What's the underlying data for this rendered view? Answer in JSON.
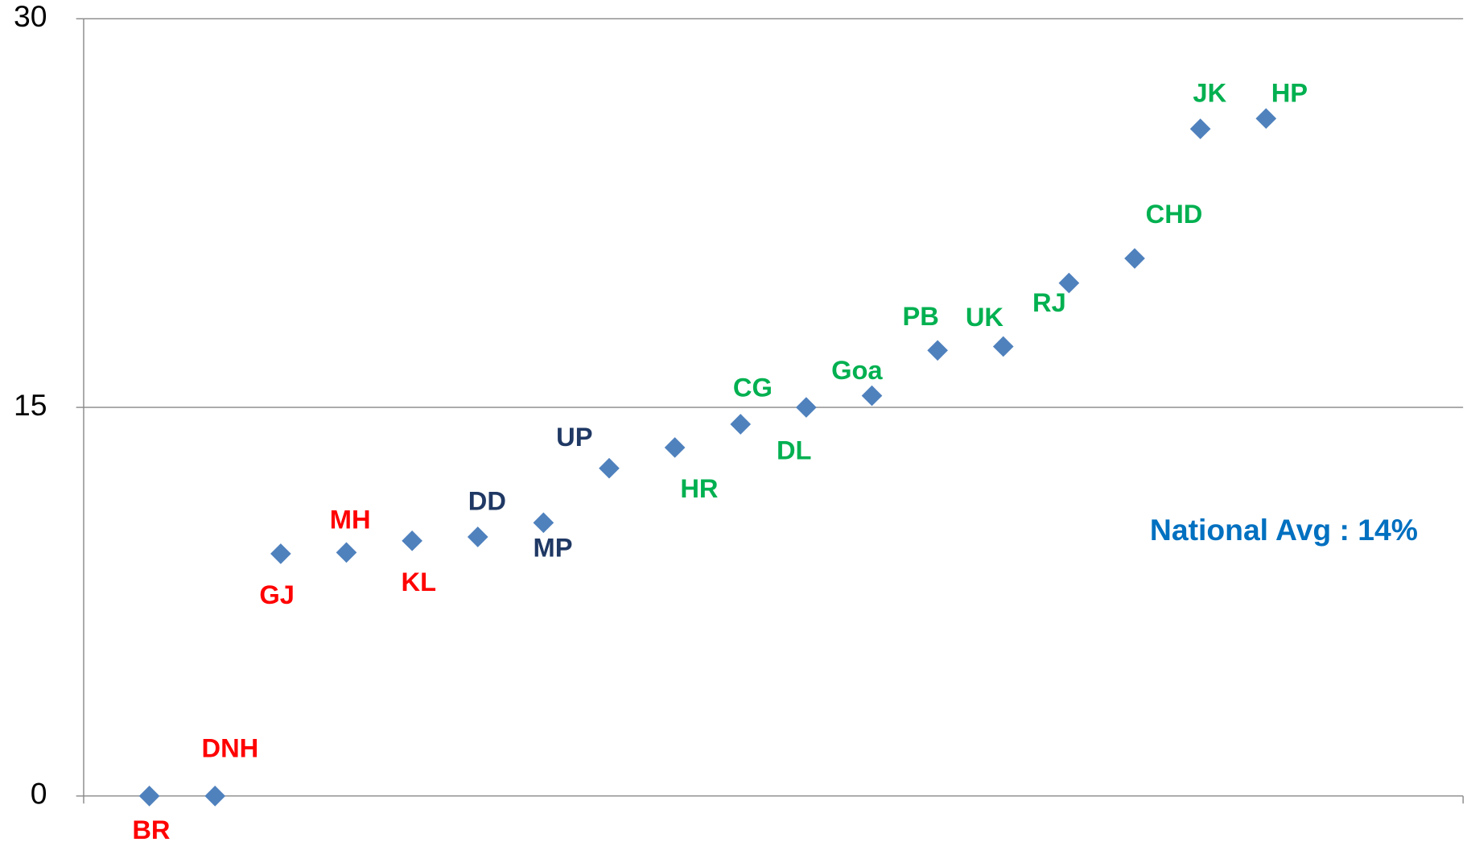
{
  "chart_data": {
    "type": "scatter",
    "categories": [
      "BR",
      "DNH",
      "GJ",
      "MH",
      "KL",
      "DD",
      "MP",
      "UP",
      "HR",
      "CG",
      "DL",
      "Goa",
      "PB",
      "UK",
      "RJ",
      "CHD",
      "JK",
      "HP"
    ],
    "values": [
      0,
      0,
      9.35,
      9.4,
      9.85,
      10,
      10.55,
      12.65,
      13.45,
      14.35,
      15,
      15.45,
      17.2,
      17.35,
      19.8,
      20.75,
      25.75,
      26.15
    ],
    "label_colors": [
      "#ff0000",
      "#ff0000",
      "#ff0000",
      "#ff0000",
      "#ff0000",
      "#1f3864",
      "#1f3864",
      "#1f3864",
      "#00b050",
      "#00b050",
      "#00b050",
      "#00b050",
      "#00b050",
      "#00b050",
      "#00b050",
      "#00b050",
      "#00b050",
      "#00b050"
    ],
    "color": "#4f81bd",
    "ylim": [
      0,
      30
    ],
    "yticks": [
      0,
      15,
      30
    ],
    "grid": true,
    "annotation": {
      "text": "National Avg : 14%",
      "color": "#0070c0"
    }
  }
}
